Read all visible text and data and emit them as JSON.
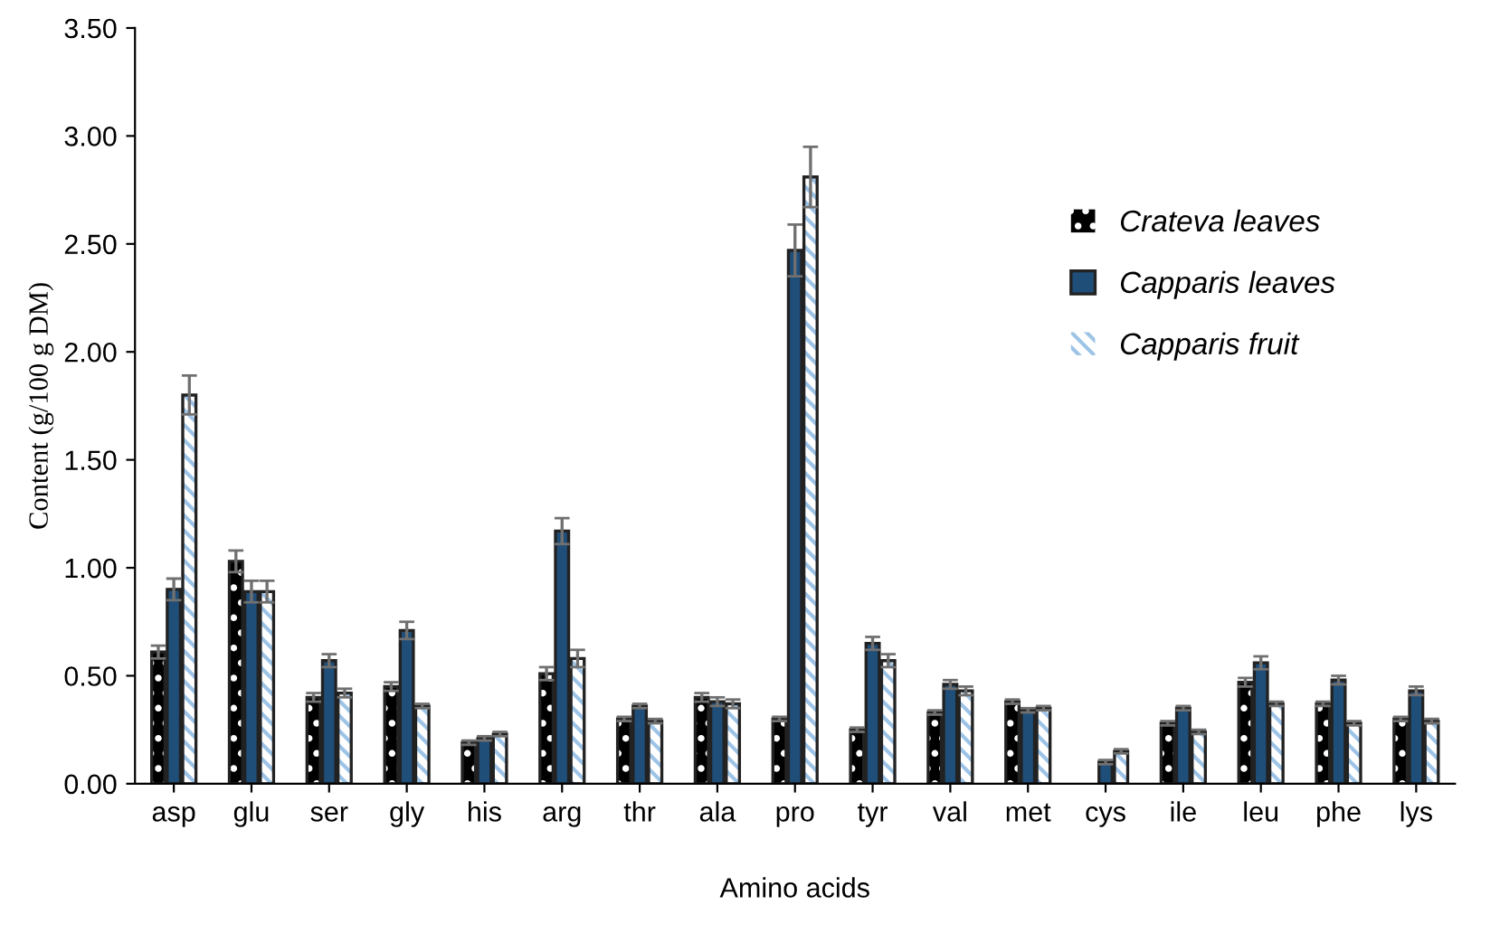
{
  "chart_data": {
    "type": "bar",
    "xlabel": "Amino acids",
    "ylabel": "Content (g/100 g DM)",
    "categories": [
      "asp",
      "glu",
      "ser",
      "gly",
      "his",
      "arg",
      "thr",
      "ala",
      "pro",
      "tyr",
      "val",
      "met",
      "cys",
      "ile",
      "leu",
      "phe",
      "lys"
    ],
    "series": [
      {
        "name": "Crateva leaves",
        "color": "#000000",
        "values": [
          0.61,
          1.03,
          0.4,
          0.45,
          0.19,
          0.51,
          0.3,
          0.4,
          0.3,
          0.25,
          0.33,
          0.38,
          null,
          0.28,
          0.47,
          0.37,
          0.3
        ],
        "errors": [
          0.03,
          0.05,
          0.02,
          0.02,
          0.01,
          0.03,
          0.01,
          0.02,
          0.01,
          0.01,
          0.01,
          0.01,
          null,
          0.01,
          0.02,
          0.01,
          0.01
        ]
      },
      {
        "name": "Capparis leaves",
        "color": "#1f4e79",
        "values": [
          0.9,
          0.89,
          0.57,
          0.71,
          0.21,
          1.17,
          0.36,
          0.38,
          2.47,
          0.65,
          0.46,
          0.34,
          0.1,
          0.35,
          0.56,
          0.48,
          0.43
        ],
        "errors": [
          0.05,
          0.05,
          0.03,
          0.04,
          0.01,
          0.06,
          0.01,
          0.02,
          0.12,
          0.03,
          0.02,
          0.01,
          0.01,
          0.01,
          0.03,
          0.02,
          0.02
        ]
      },
      {
        "name": "Capparis fruit",
        "color": "#9dc3e6",
        "values": [
          1.8,
          0.89,
          0.42,
          0.36,
          0.23,
          0.58,
          0.29,
          0.37,
          2.81,
          0.57,
          0.43,
          0.35,
          0.15,
          0.24,
          0.37,
          0.28,
          0.29
        ],
        "errors": [
          0.09,
          0.05,
          0.02,
          0.01,
          0.01,
          0.04,
          0.01,
          0.02,
          0.14,
          0.03,
          0.02,
          0.01,
          0.01,
          0.01,
          0.01,
          0.01,
          0.01
        ]
      }
    ],
    "ylim": [
      0,
      3.5
    ],
    "yticks": [
      {
        "value": 0,
        "label": "0.00"
      },
      {
        "value": 0.5,
        "label": "0.50"
      },
      {
        "value": 1,
        "label": "1.00"
      },
      {
        "value": 1.5,
        "label": "1.50"
      },
      {
        "value": 2,
        "label": "2.00"
      },
      {
        "value": 2.5,
        "label": "2.50"
      },
      {
        "value": 3,
        "label": "3.00"
      },
      {
        "value": 3.5,
        "label": "3.50"
      }
    ],
    "grid": false,
    "legend": "right"
  }
}
